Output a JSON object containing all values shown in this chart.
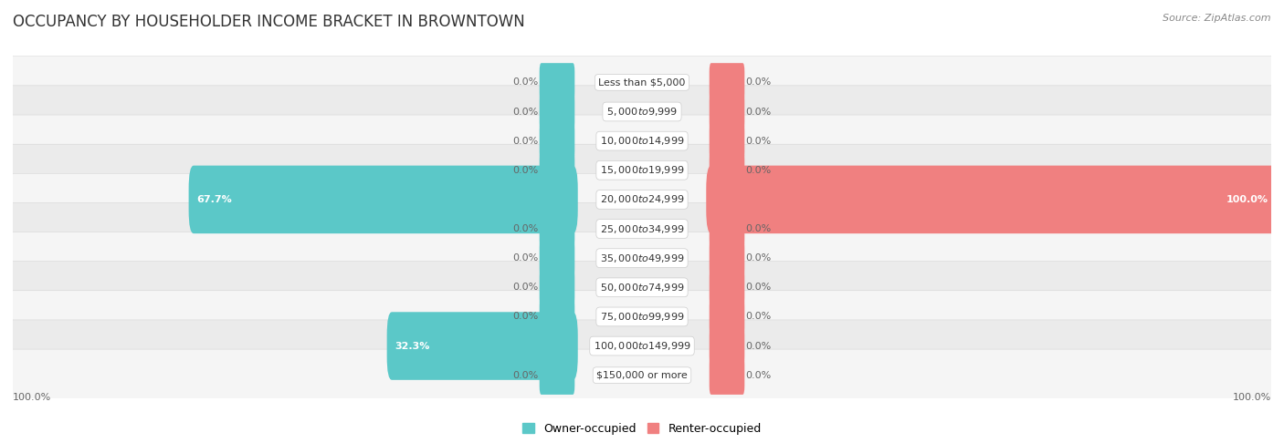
{
  "title": "OCCUPANCY BY HOUSEHOLDER INCOME BRACKET IN BROWNTOWN",
  "source": "Source: ZipAtlas.com",
  "categories": [
    "Less than $5,000",
    "$5,000 to $9,999",
    "$10,000 to $14,999",
    "$15,000 to $19,999",
    "$20,000 to $24,999",
    "$25,000 to $34,999",
    "$35,000 to $49,999",
    "$50,000 to $74,999",
    "$75,000 to $99,999",
    "$100,000 to $149,999",
    "$150,000 or more"
  ],
  "owner_pct": [
    0.0,
    0.0,
    0.0,
    0.0,
    67.7,
    0.0,
    0.0,
    0.0,
    0.0,
    32.3,
    0.0
  ],
  "renter_pct": [
    0.0,
    0.0,
    0.0,
    0.0,
    100.0,
    0.0,
    0.0,
    0.0,
    0.0,
    0.0,
    0.0
  ],
  "owner_color": "#5bc8c8",
  "renter_color": "#f08080",
  "row_bg_light": "#f5f5f5",
  "row_bg_dark": "#ebebeb",
  "title_fontsize": 12,
  "source_fontsize": 8,
  "label_fontsize": 8,
  "category_fontsize": 8,
  "legend_fontsize": 9,
  "background_color": "#ffffff",
  "stub_size": 5.0,
  "max_pct": 100.0
}
